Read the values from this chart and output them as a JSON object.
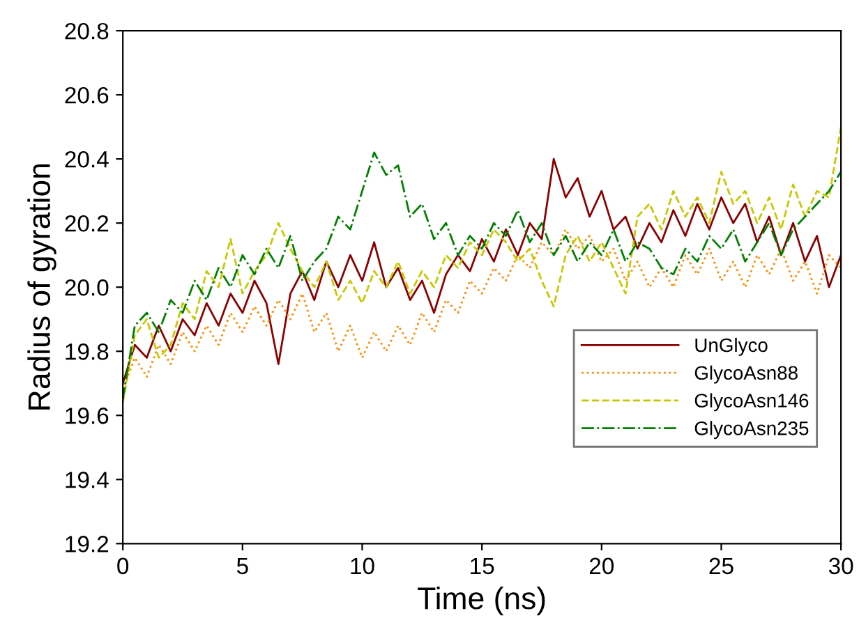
{
  "chart_data": {
    "type": "line",
    "xlabel": "Time (ns)",
    "ylabel": "Radius of gyration",
    "x": [
      0,
      0.5,
      1,
      1.5,
      2,
      2.5,
      3,
      3.5,
      4,
      4.5,
      5,
      5.5,
      6,
      6.5,
      7,
      7.5,
      8,
      8.5,
      9,
      9.5,
      10,
      10.5,
      11,
      11.5,
      12,
      12.5,
      13,
      13.5,
      14,
      14.5,
      15,
      15.5,
      16,
      16.5,
      17,
      17.5,
      18,
      18.5,
      19,
      19.5,
      20,
      20.5,
      21,
      21.5,
      22,
      22.5,
      23,
      23.5,
      24,
      24.5,
      25,
      25.5,
      26,
      26.5,
      27,
      27.5,
      28,
      28.5,
      29,
      29.5,
      30
    ],
    "xlim": [
      0,
      30
    ],
    "xticks": [
      0,
      5,
      10,
      15,
      20,
      25,
      30
    ],
    "ylim": [
      19.2,
      20.8
    ],
    "yticks": [
      19.2,
      19.4,
      19.6,
      19.8,
      {
        "value": 20,
        "label": "20.0"
      },
      20.2,
      20.4,
      20.6,
      20.8
    ],
    "grid": false,
    "legend": "bottom right",
    "marker": "none",
    "series": [
      {
        "name": "UnGlyco",
        "color": "#8b0000",
        "line_style": "solid",
        "values": [
          19.7,
          19.82,
          19.78,
          19.88,
          19.8,
          19.9,
          19.85,
          19.95,
          19.88,
          19.98,
          19.92,
          20.02,
          19.95,
          19.76,
          19.98,
          20.05,
          19.96,
          20.08,
          20.0,
          20.1,
          20.02,
          20.14,
          20.0,
          20.06,
          19.96,
          20.02,
          19.92,
          20.04,
          20.1,
          20.05,
          20.15,
          20.08,
          20.18,
          20.1,
          20.2,
          20.15,
          20.4,
          20.28,
          20.34,
          20.22,
          20.3,
          20.18,
          20.22,
          20.12,
          20.2,
          20.14,
          20.24,
          20.16,
          20.26,
          20.18,
          20.28,
          20.2,
          20.26,
          20.14,
          20.22,
          20.1,
          20.2,
          20.08,
          20.16,
          20.0,
          20.1
        ]
      },
      {
        "name": "GlycoAsn88",
        "color": "#ff8c00",
        "line_style": "dotted",
        "values": [
          19.68,
          19.78,
          19.72,
          19.82,
          19.76,
          19.86,
          19.8,
          19.88,
          19.82,
          19.92,
          19.86,
          19.94,
          19.88,
          19.96,
          19.9,
          19.98,
          19.86,
          19.92,
          19.8,
          19.88,
          19.78,
          19.86,
          19.8,
          19.88,
          19.82,
          19.92,
          19.86,
          19.96,
          19.92,
          20.02,
          19.98,
          20.06,
          20.02,
          20.1,
          20.06,
          20.14,
          20.1,
          20.18,
          20.12,
          20.16,
          20.08,
          20.12,
          20.02,
          20.08,
          20.0,
          20.06,
          20.0,
          20.1,
          20.04,
          20.12,
          20.02,
          20.08,
          20.0,
          20.1,
          20.04,
          20.12,
          20.02,
          20.08,
          19.98,
          20.1,
          20.06
        ]
      },
      {
        "name": "GlycoAsn146",
        "color": "#c8c800",
        "line_style": "dashed",
        "values": [
          19.64,
          19.85,
          19.9,
          19.78,
          19.82,
          19.95,
          19.9,
          20.05,
          20.0,
          20.15,
          19.98,
          20.05,
          20.1,
          20.2,
          20.12,
          20.05,
          20.0,
          20.08,
          19.96,
          20.02,
          19.95,
          20.05,
          20.0,
          20.08,
          19.98,
          20.05,
          20.0,
          20.1,
          20.06,
          20.14,
          20.1,
          20.18,
          20.14,
          20.08,
          20.12,
          20.02,
          19.94,
          20.1,
          20.16,
          20.08,
          20.14,
          20.06,
          19.98,
          20.22,
          20.26,
          20.18,
          20.3,
          20.22,
          20.28,
          20.2,
          20.36,
          20.26,
          20.3,
          20.2,
          20.28,
          20.18,
          20.32,
          20.22,
          20.3,
          20.28,
          20.5
        ]
      },
      {
        "name": "GlycoAsn235",
        "color": "#008000",
        "line_style": "dashdot",
        "values": [
          19.65,
          19.88,
          19.92,
          19.86,
          19.96,
          19.92,
          20.02,
          19.96,
          20.06,
          20.0,
          20.1,
          20.04,
          20.12,
          20.06,
          20.16,
          20.02,
          20.08,
          20.12,
          20.22,
          20.18,
          20.3,
          20.42,
          20.35,
          20.38,
          20.22,
          20.26,
          20.15,
          20.2,
          20.1,
          20.16,
          20.12,
          20.2,
          20.16,
          20.24,
          20.14,
          20.2,
          20.1,
          20.16,
          20.08,
          20.14,
          20.1,
          20.18,
          20.08,
          20.14,
          20.12,
          20.06,
          20.04,
          20.12,
          20.08,
          20.16,
          20.12,
          20.18,
          20.08,
          20.14,
          20.2,
          20.1,
          20.18,
          20.22,
          20.26,
          20.3,
          20.36
        ]
      }
    ]
  }
}
